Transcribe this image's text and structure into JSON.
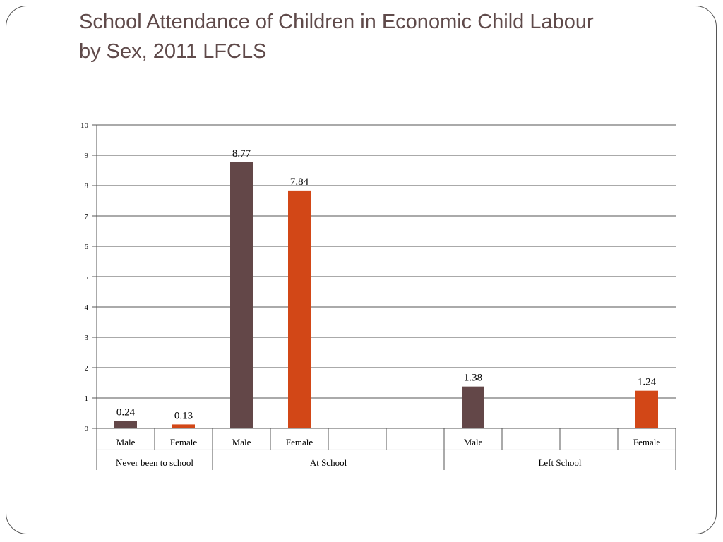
{
  "slide": {
    "title_line1": "School Attendance of Children in Economic Child Labour",
    "title_line2": "by Sex, 2011 LFCLS"
  },
  "colors": {
    "male": "#634748",
    "female": "#d24717",
    "grid": "#555555",
    "title": "#5f4a4a"
  },
  "chart_data": {
    "type": "bar",
    "ylim": [
      0,
      10
    ],
    "y_ticks": [
      "0",
      "1",
      "2",
      "3",
      "4",
      "5",
      "6",
      "7",
      "8",
      "9",
      "10"
    ],
    "grid": true,
    "categories": [
      "Male",
      "Female",
      "Male",
      "Female",
      "",
      "",
      "Male",
      "",
      "",
      "Female"
    ],
    "groups": [
      {
        "label": "Never been to school",
        "span": [
          0,
          1
        ]
      },
      {
        "label": "At School",
        "span": [
          2,
          5
        ]
      },
      {
        "label": "Left School",
        "span": [
          6,
          9
        ]
      }
    ],
    "values": [
      0.24,
      0.13,
      8.77,
      7.84,
      null,
      null,
      1.38,
      null,
      null,
      1.24
    ],
    "value_labels": [
      "0.24",
      "0.13",
      "8.77",
      "7.84",
      "",
      "",
      "1.38",
      "",
      "",
      "1.24"
    ],
    "bar_series": [
      "male",
      "female",
      "male",
      "female",
      "",
      "",
      "male",
      "",
      "",
      "female"
    ]
  }
}
